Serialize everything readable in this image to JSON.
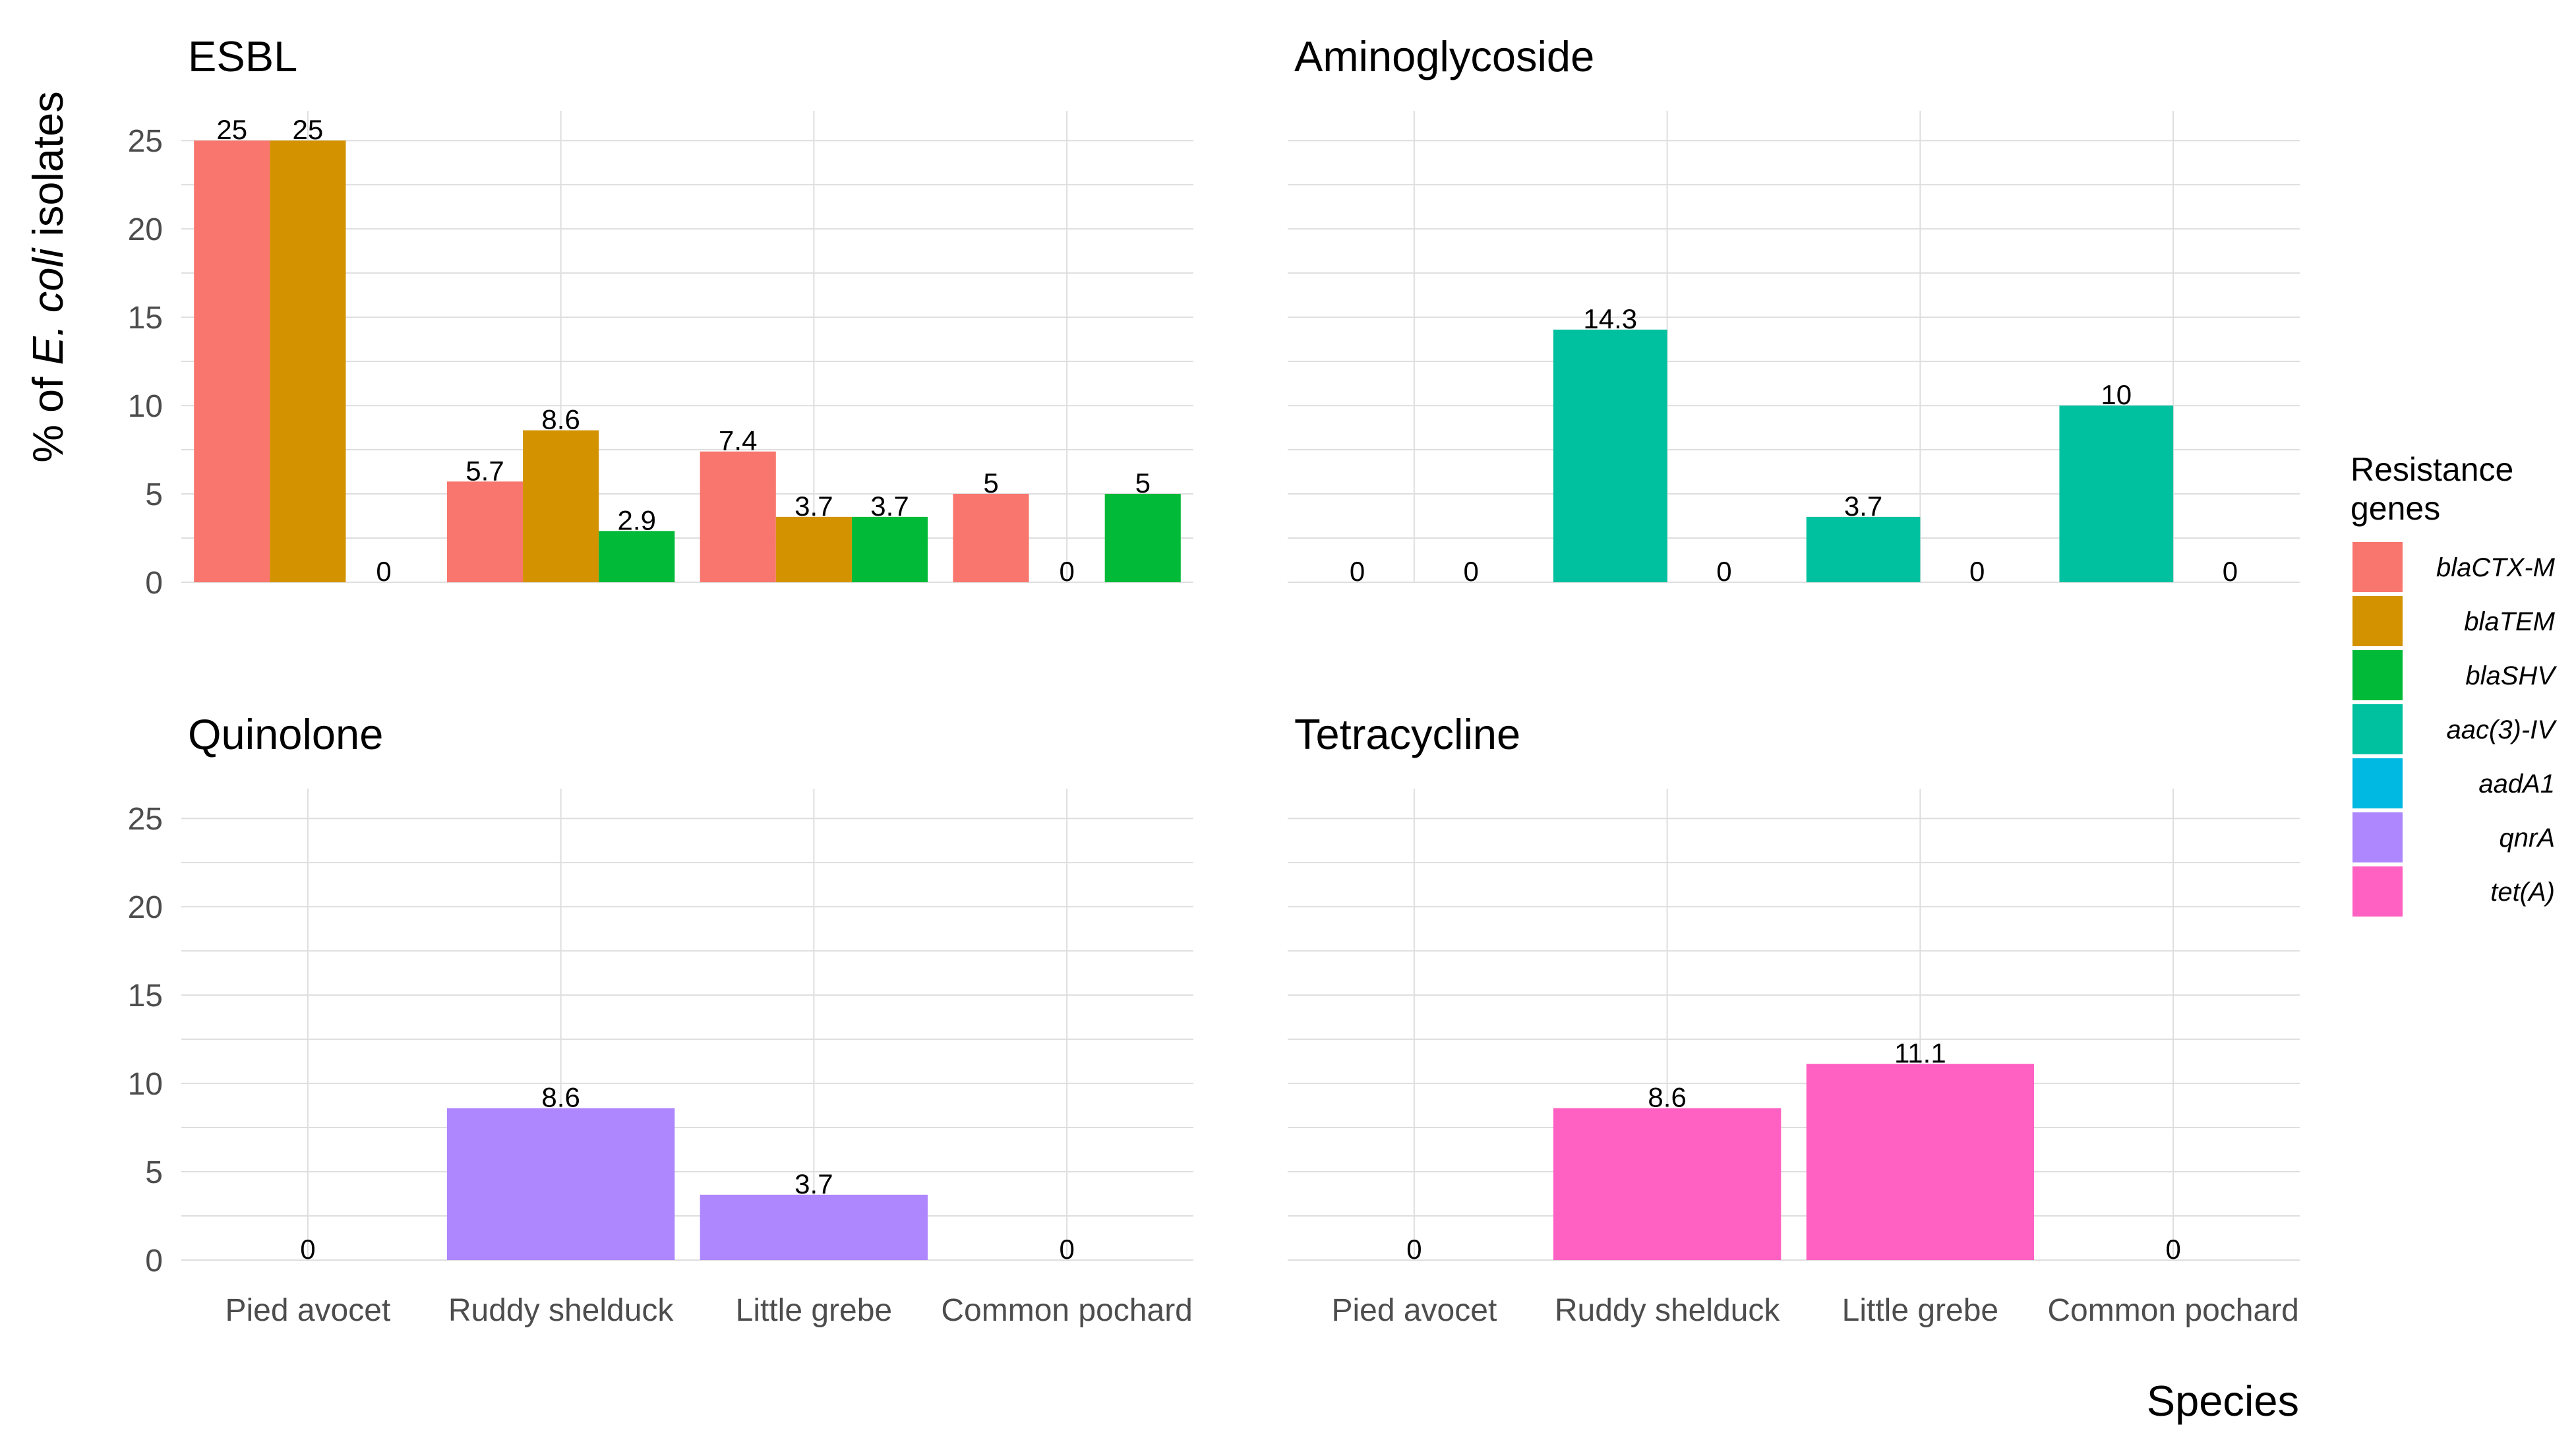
{
  "chart_data": {
    "type": "bar",
    "ylabel_prefix": "% of ",
    "ylabel_italic": "E. coli",
    "ylabel_suffix": " isolates",
    "xlabel": "Species",
    "categories": [
      "Pied avocet",
      "Ruddy shelduck",
      "Little grebe",
      "Common pochard"
    ],
    "yticks": [
      0,
      5,
      10,
      15,
      20,
      25
    ],
    "ylim": [
      0,
      26.5
    ],
    "grid": true,
    "legend": {
      "position": "right",
      "title_line1": "Resistance",
      "title_line2": "genes",
      "entries": [
        {
          "name": "blaCTX-M",
          "color": "#F8766D"
        },
        {
          "name": "blaTEM",
          "color": "#D39200"
        },
        {
          "name": "blaSHV",
          "color": "#00BA38"
        },
        {
          "name": "aac(3)-IV",
          "color": "#00C19F"
        },
        {
          "name": "aadA1",
          "color": "#00B9E3"
        },
        {
          "name": "qnrA",
          "color": "#AE87FF"
        },
        {
          "name": "tet(A)",
          "color": "#FF61C3"
        }
      ]
    },
    "panels": [
      {
        "title": "ESBL",
        "series": [
          {
            "name": "blaCTX-M",
            "color": "#F8766D",
            "values": [
              25,
              5.7,
              7.4,
              5
            ],
            "labels": [
              "25",
              "5.7",
              "7.4",
              "5"
            ]
          },
          {
            "name": "blaTEM",
            "color": "#D39200",
            "values": [
              25,
              8.6,
              3.7,
              0
            ],
            "labels": [
              "25",
              "8.6",
              "3.7",
              "0"
            ]
          },
          {
            "name": "blaSHV",
            "color": "#00BA38",
            "values": [
              0,
              2.9,
              3.7,
              5
            ],
            "labels": [
              "0",
              "2.9",
              "3.7",
              "5"
            ]
          }
        ]
      },
      {
        "title": "Aminoglycoside",
        "series": [
          {
            "name": "aac(3)-IV",
            "color": "#00C19F",
            "values": [
              0,
              14.3,
              3.7,
              10
            ],
            "labels": [
              "0",
              "14.3",
              "3.7",
              "10"
            ]
          },
          {
            "name": "aadA1",
            "color": "#00B9E3",
            "values": [
              0,
              0,
              0,
              0
            ],
            "labels": [
              "0",
              "0",
              "0",
              "0"
            ]
          }
        ]
      },
      {
        "title": "Quinolone",
        "series": [
          {
            "name": "qnrA",
            "color": "#AE87FF",
            "values": [
              0,
              8.6,
              3.7,
              0
            ],
            "labels": [
              "0",
              "8.6",
              "3.7",
              "0"
            ]
          }
        ]
      },
      {
        "title": "Tetracycline",
        "series": [
          {
            "name": "tet(A)",
            "color": "#FF61C3",
            "values": [
              0,
              8.6,
              11.1,
              0
            ],
            "labels": [
              "0",
              "8.6",
              "11.1",
              "0"
            ]
          }
        ]
      }
    ]
  }
}
